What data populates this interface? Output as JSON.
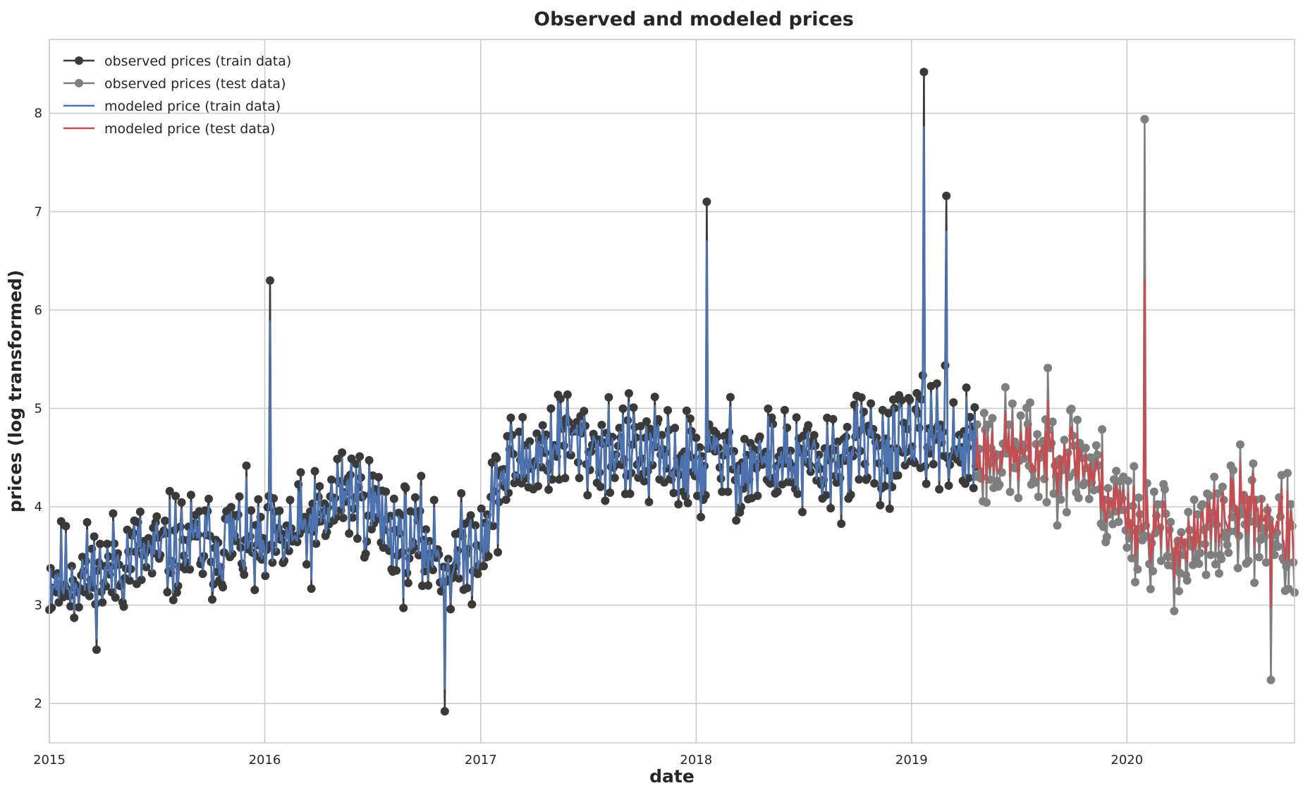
{
  "chart_data": {
    "type": "line",
    "title": "Observed and modeled prices",
    "xlabel": "date",
    "ylabel": "prices (log transformed)",
    "xlim": [
      "2015-01-01",
      "2020-10-11"
    ],
    "ylim": [
      1.6,
      8.75
    ],
    "x_ticks": [
      "2015",
      "2016",
      "2017",
      "2018",
      "2019",
      "2020"
    ],
    "y_ticks": [
      2,
      3,
      4,
      5,
      6,
      7,
      8
    ],
    "grid": true,
    "legend_position": "top-left",
    "series": [
      {
        "name": "observed prices (train data)",
        "color": "#3a3a3a",
        "marker": "circle",
        "x": [
          "2015-01-01",
          "2015-02-15",
          "2015-04-01",
          "2015-05-15",
          "2015-07-01",
          "2015-08-15",
          "2015-10-01",
          "2015-11-15",
          "2016-01-01",
          "2016-02-15",
          "2016-04-01",
          "2016-05-15",
          "2016-07-01",
          "2016-08-15",
          "2016-10-01",
          "2016-11-15",
          "2017-01-01",
          "2017-02-15",
          "2017-04-01",
          "2017-05-15",
          "2017-07-01",
          "2017-08-15",
          "2017-10-01",
          "2017-11-15",
          "2018-01-01",
          "2018-02-15",
          "2018-04-01",
          "2018-05-15",
          "2018-07-01",
          "2018-08-15",
          "2018-10-01",
          "2018-11-15",
          "2019-01-01",
          "2019-02-15",
          "2019-04-01",
          "2019-04-20"
        ],
        "values": [
          3.3,
          3.3,
          3.3,
          3.5,
          3.5,
          3.6,
          3.6,
          3.7,
          3.5,
          3.7,
          3.8,
          4.2,
          4.0,
          3.7,
          3.6,
          3.4,
          3.7,
          4.4,
          4.5,
          4.7,
          4.6,
          4.6,
          4.5,
          4.5,
          4.4,
          4.5,
          4.4,
          4.5,
          4.4,
          4.4,
          4.6,
          4.6,
          4.6,
          4.8,
          4.6,
          4.5
        ]
      },
      {
        "name": "observed prices (test data)",
        "color": "#7f7f7f",
        "marker": "circle",
        "x": [
          "2019-04-20",
          "2019-06-01",
          "2019-07-15",
          "2019-09-01",
          "2019-10-15",
          "2019-12-01",
          "2020-01-15",
          "2020-03-01",
          "2020-04-15",
          "2020-06-01",
          "2020-07-15",
          "2020-09-01",
          "2020-10-11"
        ],
        "values": [
          4.5,
          4.6,
          4.5,
          4.6,
          4.5,
          4.1,
          3.9,
          3.7,
          3.5,
          3.8,
          3.9,
          3.8,
          3.6
        ]
      },
      {
        "name": "modeled price (train data)",
        "color": "#4c72b0",
        "marker": "none",
        "x": [
          "2015-01-01",
          "2015-02-15",
          "2015-04-01",
          "2015-05-15",
          "2015-07-01",
          "2015-08-15",
          "2015-10-01",
          "2015-11-15",
          "2016-01-01",
          "2016-02-15",
          "2016-04-01",
          "2016-05-15",
          "2016-07-01",
          "2016-08-15",
          "2016-10-01",
          "2016-11-15",
          "2017-01-01",
          "2017-02-15",
          "2017-04-01",
          "2017-05-15",
          "2017-07-01",
          "2017-08-15",
          "2017-10-01",
          "2017-11-15",
          "2018-01-01",
          "2018-02-15",
          "2018-04-01",
          "2018-05-15",
          "2018-07-01",
          "2018-08-15",
          "2018-10-01",
          "2018-11-15",
          "2019-01-01",
          "2019-02-15",
          "2019-04-01",
          "2019-04-20"
        ],
        "values": [
          3.3,
          3.3,
          3.3,
          3.5,
          3.5,
          3.6,
          3.6,
          3.7,
          3.5,
          3.7,
          3.8,
          4.2,
          4.0,
          3.7,
          3.6,
          3.4,
          3.7,
          4.4,
          4.5,
          4.7,
          4.6,
          4.6,
          4.5,
          4.5,
          4.4,
          4.5,
          4.4,
          4.5,
          4.4,
          4.4,
          4.6,
          4.6,
          4.6,
          4.8,
          4.6,
          4.5
        ]
      },
      {
        "name": "modeled price (test data)",
        "color": "#c44e52",
        "marker": "none",
        "x": [
          "2019-04-20",
          "2019-06-01",
          "2019-07-15",
          "2019-09-01",
          "2019-10-15",
          "2019-12-01",
          "2020-01-15",
          "2020-03-01",
          "2020-04-15",
          "2020-06-01",
          "2020-07-15",
          "2020-09-01",
          "2020-10-11"
        ],
        "values": [
          4.5,
          4.6,
          4.5,
          4.6,
          4.5,
          4.1,
          3.9,
          3.8,
          3.7,
          4.0,
          4.2,
          4.1,
          3.8
        ]
      }
    ],
    "notable_peaks": [
      {
        "series": "observed prices (train data)",
        "x": "2016-01-10",
        "y": 6.3
      },
      {
        "series": "observed prices (train data)",
        "x": "2016-11-01",
        "y": 1.92
      },
      {
        "series": "observed prices (train data)",
        "x": "2018-01-20",
        "y": 7.1
      },
      {
        "series": "observed prices (train data)",
        "x": "2019-01-22",
        "y": 8.42
      },
      {
        "series": "observed prices (train data)",
        "x": "2019-03-01",
        "y": 7.16
      },
      {
        "series": "observed prices (test data)",
        "x": "2020-02-01",
        "y": 7.94
      },
      {
        "series": "observed prices (test data)",
        "x": "2020-09-01",
        "y": 2.24
      }
    ]
  }
}
